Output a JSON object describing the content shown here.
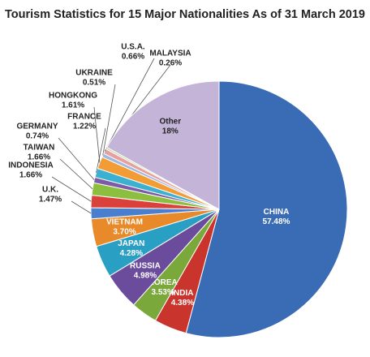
{
  "chart_data": {
    "type": "pie",
    "title": "Tourism Statistics for 15 Major Nationalities As of 31 March 2019",
    "categories": [
      "CHINA",
      "INDIA",
      "KOREA",
      "RUSSIA",
      "JAPAN",
      "VIETNAM",
      "U.K.",
      "INDONESIA",
      "TAIWAN",
      "GERMANY",
      "FRANCE",
      "HONGKONG",
      "UKRAINE",
      "U.S.A.",
      "MALAYSIA",
      "Other"
    ],
    "values": [
      57.48,
      4.38,
      3.53,
      4.98,
      4.28,
      3.7,
      1.47,
      1.66,
      1.66,
      0.74,
      1.22,
      1.61,
      0.51,
      0.66,
      0.26,
      18
    ],
    "value_labels": [
      "57.48%",
      "4.38%",
      "3.53%",
      "4.98%",
      "4.28%",
      "3.70%",
      "1.47%",
      "1.66%",
      "1.66%",
      "0.74%",
      "1.22%",
      "1.61%",
      "0.51%",
      "0.66%",
      "0.26%",
      "18%"
    ],
    "colors": [
      "#3a6bb5",
      "#c9342c",
      "#7aa83b",
      "#6b4c9c",
      "#2a9fc4",
      "#e8892a",
      "#4a7fd0",
      "#d9413a",
      "#8cbf3f",
      "#7d5ba6",
      "#3bb0d0",
      "#f39c35",
      "#9fb8e0",
      "#e6a0a0",
      "#c8dca0",
      "#c4b5d8"
    ]
  }
}
